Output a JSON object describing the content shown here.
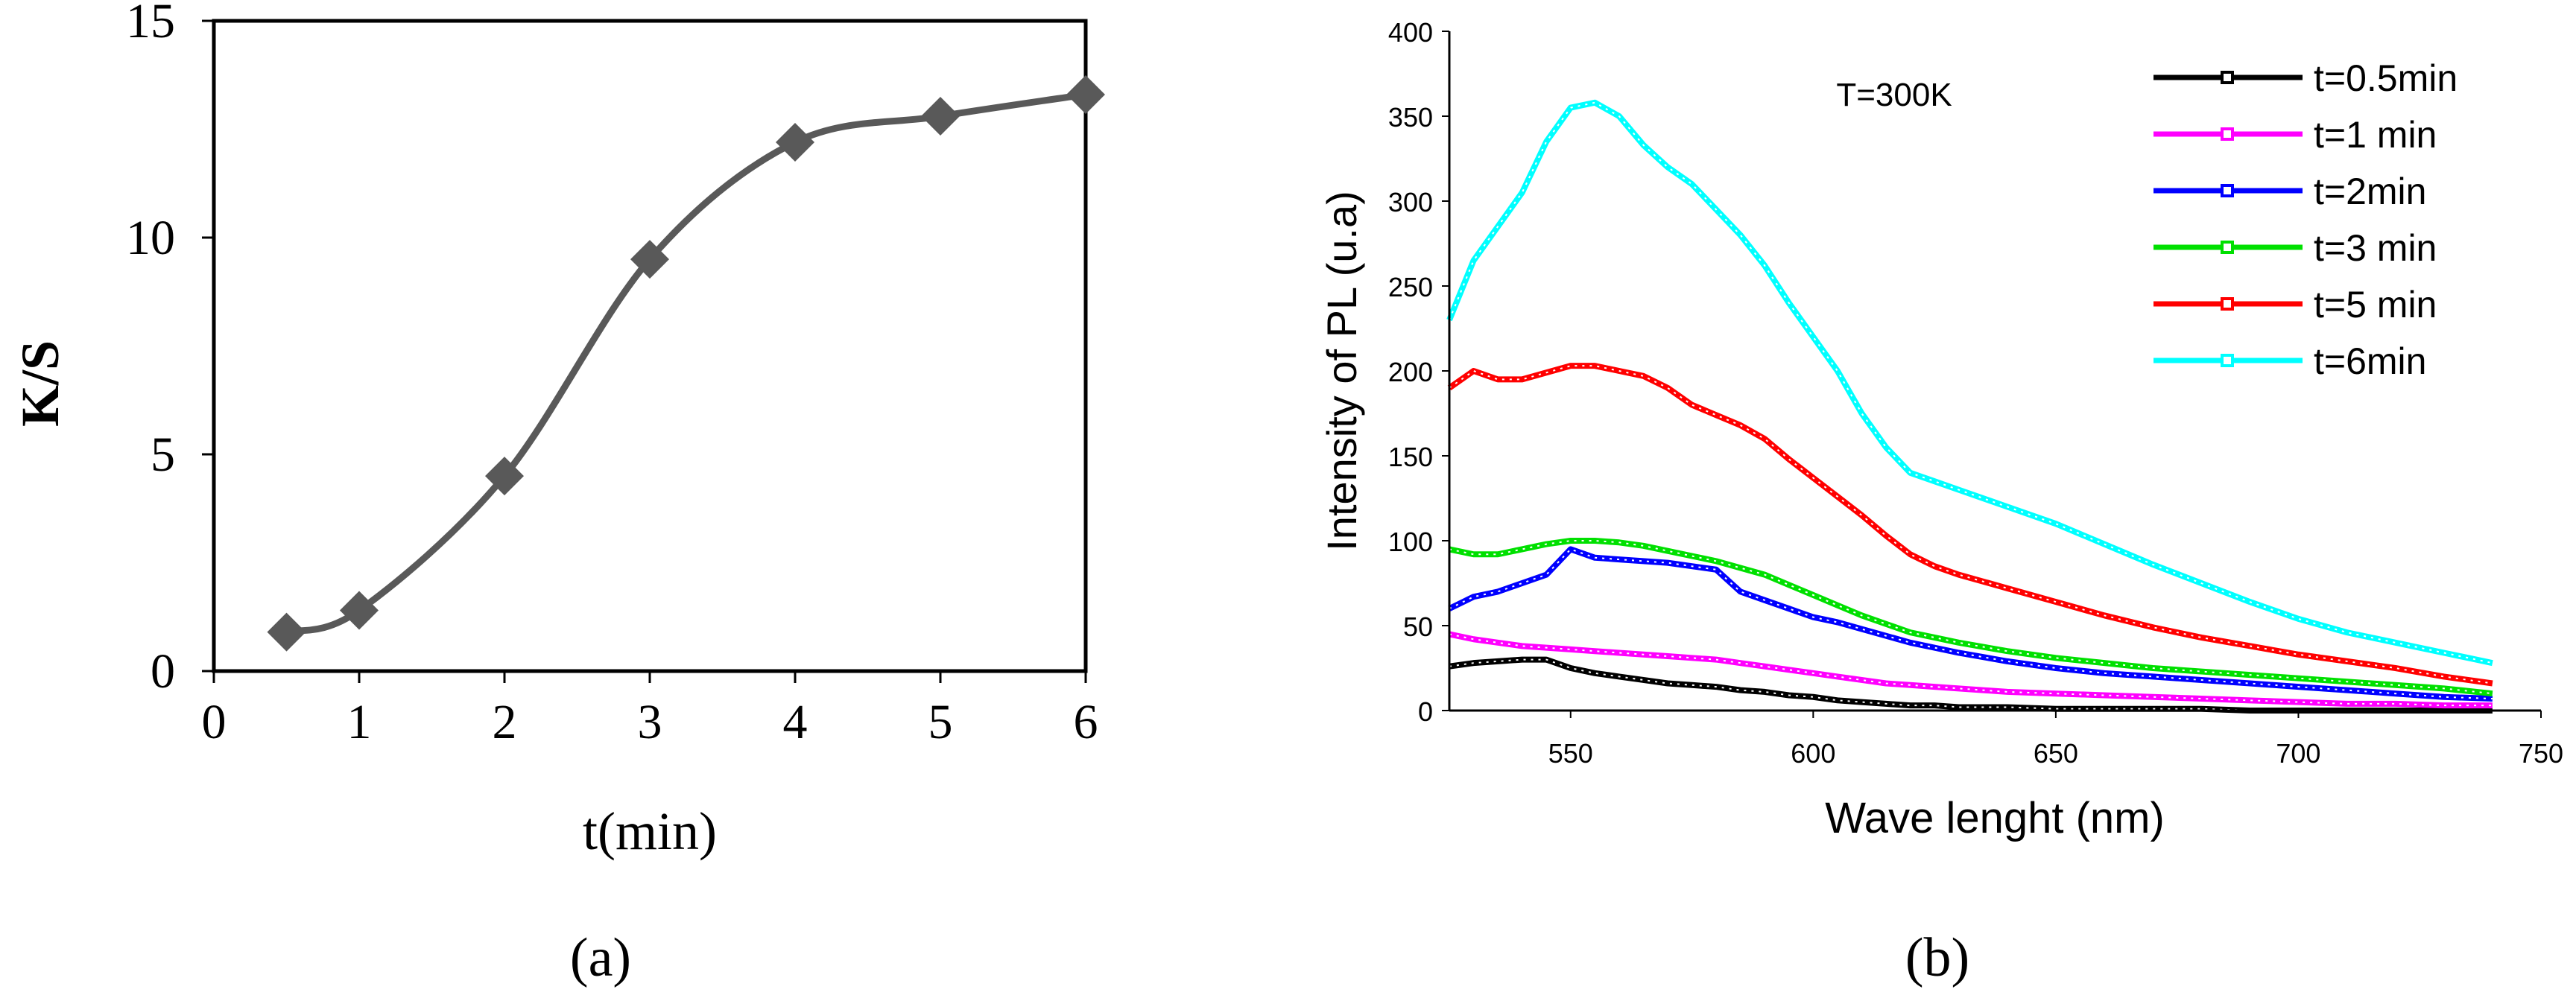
{
  "chart_data": [
    {
      "panel_label": "(a)",
      "type": "line",
      "title": "",
      "xlabel": "t(min)",
      "ylabel": "K/S",
      "xlim": [
        0,
        6
      ],
      "ylim": [
        0,
        15
      ],
      "xticks": [
        0,
        1,
        2,
        3,
        4,
        5,
        6
      ],
      "yticks": [
        0,
        5,
        10,
        15
      ],
      "grid": false,
      "marker": "diamond",
      "color": "#595959",
      "x": [
        0.5,
        1,
        2,
        3,
        4,
        5,
        6
      ],
      "y": [
        0.9,
        1.4,
        4.5,
        9.5,
        12.2,
        12.8,
        13.3
      ]
    },
    {
      "panel_label": "(b)",
      "type": "line",
      "title": "",
      "annotation": "T=300K",
      "xlabel": "Wave lenght (nm)",
      "ylabel": "Intensity of PL (u.a)",
      "xlim": [
        525,
        750
      ],
      "ylim": [
        0,
        400
      ],
      "xticks": [
        550,
        600,
        650,
        700,
        750
      ],
      "yticks": [
        0,
        50,
        100,
        150,
        200,
        250,
        300,
        350,
        400
      ],
      "grid": false,
      "legend_position": "top-right",
      "x": [
        525,
        530,
        535,
        540,
        545,
        550,
        555,
        560,
        565,
        570,
        575,
        580,
        585,
        590,
        595,
        600,
        605,
        610,
        615,
        620,
        625,
        630,
        640,
        650,
        660,
        670,
        680,
        690,
        700,
        710,
        720,
        730,
        740
      ],
      "series": [
        {
          "name": "t=0.5min",
          "color": "#000000",
          "values": [
            26,
            28,
            29,
            30,
            30,
            25,
            22,
            20,
            18,
            16,
            15,
            14,
            12,
            11,
            9,
            8,
            6,
            5,
            4,
            3,
            3,
            2,
            2,
            1,
            1,
            1,
            1,
            0,
            0,
            0,
            0,
            0,
            0
          ]
        },
        {
          "name": "t=1 min",
          "color": "#ff00ff",
          "values": [
            45,
            42,
            40,
            38,
            37,
            36,
            35,
            34,
            33,
            32,
            31,
            30,
            28,
            26,
            24,
            22,
            20,
            18,
            16,
            15,
            14,
            13,
            11,
            10,
            9,
            8,
            7,
            6,
            5,
            4,
            4,
            3,
            3
          ]
        },
        {
          "name": "t=2min",
          "color": "#0000ff",
          "values": [
            60,
            67,
            70,
            75,
            80,
            95,
            90,
            89,
            88,
            87,
            85,
            83,
            70,
            65,
            60,
            55,
            52,
            48,
            44,
            40,
            37,
            34,
            29,
            25,
            22,
            20,
            18,
            16,
            14,
            12,
            10,
            8,
            7
          ]
        },
        {
          "name": "t=3 min",
          "color": "#00e000",
          "values": [
            95,
            92,
            92,
            95,
            98,
            100,
            100,
            99,
            97,
            94,
            91,
            88,
            84,
            80,
            74,
            68,
            62,
            56,
            51,
            46,
            43,
            40,
            35,
            31,
            28,
            25,
            23,
            21,
            19,
            17,
            15,
            13,
            10
          ]
        },
        {
          "name": "t=5 min",
          "color": "#ff0000",
          "values": [
            190,
            200,
            195,
            195,
            199,
            203,
            203,
            200,
            197,
            190,
            180,
            174,
            168,
            160,
            148,
            137,
            126,
            115,
            103,
            92,
            85,
            80,
            72,
            64,
            56,
            49,
            43,
            38,
            33,
            29,
            25,
            20,
            16
          ]
        },
        {
          "name": "t=6min",
          "color": "#00ffff",
          "values": [
            230,
            265,
            285,
            305,
            335,
            355,
            358,
            350,
            333,
            320,
            310,
            295,
            280,
            262,
            240,
            220,
            200,
            175,
            155,
            140,
            135,
            130,
            120,
            110,
            98,
            86,
            75,
            64,
            54,
            46,
            40,
            34,
            28
          ]
        }
      ]
    }
  ]
}
